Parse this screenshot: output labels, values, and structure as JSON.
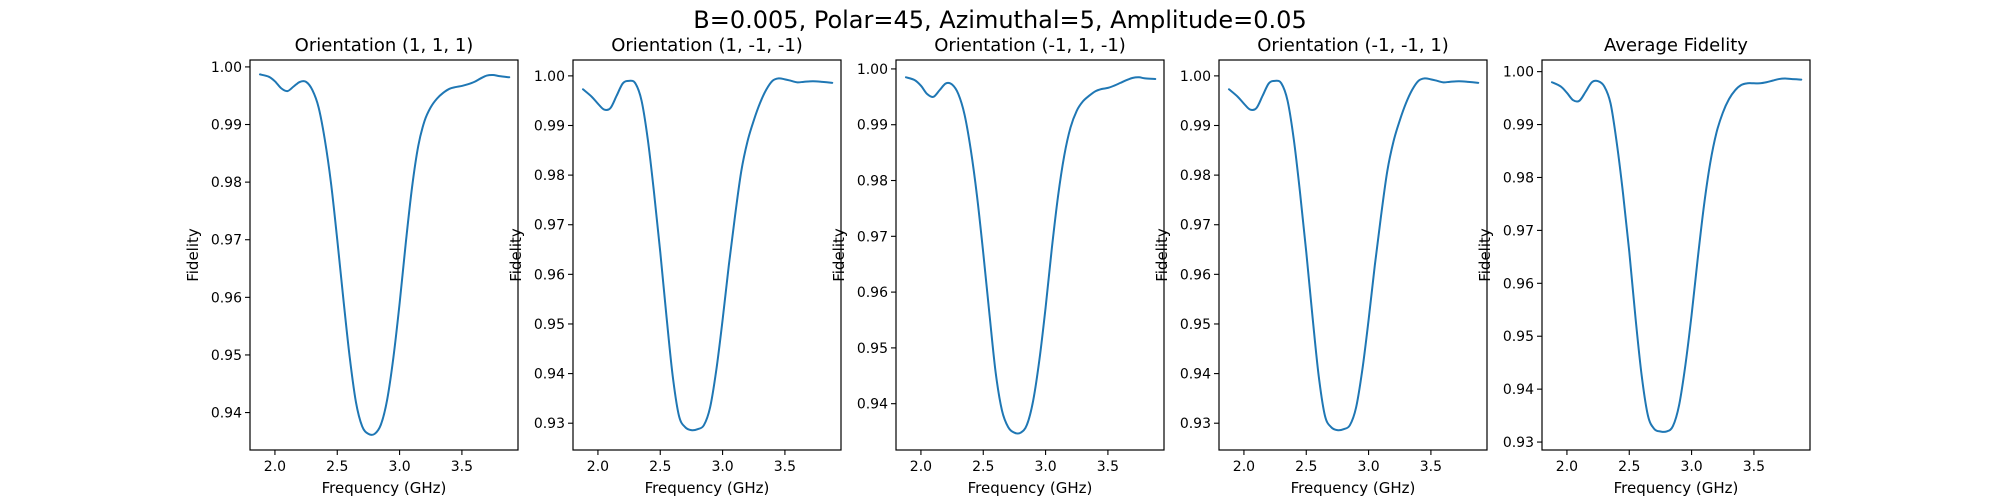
{
  "figure": {
    "suptitle": "B=0.005, Polar=45, Azimuthal=5, Amplitude=0.05"
  },
  "style": {
    "line_color": "#1f77b4"
  },
  "chart_data": [
    {
      "type": "line",
      "title": "Orientation (1, 1, 1)",
      "xlabel": "Frequency (GHz)",
      "ylabel": "Fidelity",
      "xlim": [
        1.8,
        3.95
      ],
      "ylim": [
        0.9335,
        1.0012
      ],
      "xticks": [
        2.0,
        2.5,
        3.0,
        3.5
      ],
      "yticks": [
        0.94,
        0.95,
        0.96,
        0.97,
        0.98,
        0.99,
        1.0
      ],
      "grid": false,
      "series": [
        {
          "x": [
            1.88,
            1.95,
            2.0,
            2.05,
            2.1,
            2.15,
            2.2,
            2.25,
            2.3,
            2.35,
            2.4,
            2.45,
            2.5,
            2.55,
            2.6,
            2.65,
            2.7,
            2.75,
            2.8,
            2.85,
            2.9,
            2.95,
            3.0,
            3.05,
            3.1,
            3.15,
            3.2,
            3.25,
            3.3,
            3.35,
            3.4,
            3.45,
            3.5,
            3.55,
            3.6,
            3.65,
            3.7,
            3.75,
            3.8,
            3.88
          ],
          "y": [
            0.9987,
            0.9983,
            0.9975,
            0.9963,
            0.9958,
            0.9966,
            0.9974,
            0.9974,
            0.996,
            0.993,
            0.9874,
            0.9798,
            0.97,
            0.9595,
            0.9496,
            0.9418,
            0.9376,
            0.9363,
            0.9363,
            0.9379,
            0.9422,
            0.9495,
            0.9589,
            0.9695,
            0.9791,
            0.9863,
            0.9906,
            0.993,
            0.9945,
            0.9955,
            0.9962,
            0.9965,
            0.9967,
            0.997,
            0.9974,
            0.998,
            0.9985,
            0.9986,
            0.9984,
            0.9982
          ]
        }
      ]
    },
    {
      "type": "line",
      "title": "Orientation (1, -1, -1)",
      "xlabel": "Frequency (GHz)",
      "ylabel": "Fidelity",
      "xlim": [
        1.8,
        3.95
      ],
      "ylim": [
        0.9246,
        1.0032
      ],
      "xticks": [
        2.0,
        2.5,
        3.0,
        3.5
      ],
      "yticks": [
        0.93,
        0.94,
        0.95,
        0.96,
        0.97,
        0.98,
        0.99,
        1.0
      ],
      "grid": false,
      "series": [
        {
          "x": [
            1.88,
            1.95,
            2.0,
            2.05,
            2.1,
            2.15,
            2.2,
            2.25,
            2.3,
            2.35,
            2.4,
            2.45,
            2.5,
            2.55,
            2.6,
            2.65,
            2.7,
            2.75,
            2.8,
            2.85,
            2.9,
            2.95,
            3.0,
            3.05,
            3.1,
            3.15,
            3.2,
            3.25,
            3.3,
            3.35,
            3.4,
            3.45,
            3.5,
            3.55,
            3.6,
            3.65,
            3.7,
            3.75,
            3.8,
            3.88
          ],
          "y": [
            0.9973,
            0.9958,
            0.9944,
            0.9932,
            0.9935,
            0.996,
            0.9985,
            0.999,
            0.9985,
            0.995,
            0.9872,
            0.9765,
            0.9645,
            0.9515,
            0.9395,
            0.9315,
            0.9292,
            0.9286,
            0.9288,
            0.9296,
            0.9332,
            0.9408,
            0.9508,
            0.9618,
            0.9718,
            0.9808,
            0.9868,
            0.991,
            0.9945,
            0.9972,
            0.999,
            0.9995,
            0.9993,
            0.999,
            0.9987,
            0.9988,
            0.9989,
            0.9989,
            0.9988,
            0.9986
          ]
        }
      ]
    },
    {
      "type": "line",
      "title": "Orientation (-1, 1, -1)",
      "xlabel": "Frequency (GHz)",
      "ylabel": "Fidelity",
      "xlim": [
        1.8,
        3.95
      ],
      "ylim": [
        0.9317,
        1.0016
      ],
      "xticks": [
        2.0,
        2.5,
        3.0,
        3.5
      ],
      "yticks": [
        0.94,
        0.95,
        0.96,
        0.97,
        0.98,
        0.99,
        1.0
      ],
      "grid": false,
      "series": [
        {
          "x": [
            1.88,
            1.95,
            2.0,
            2.05,
            2.1,
            2.15,
            2.2,
            2.25,
            2.3,
            2.35,
            2.4,
            2.45,
            2.5,
            2.55,
            2.6,
            2.65,
            2.7,
            2.75,
            2.8,
            2.85,
            2.9,
            2.95,
            3.0,
            3.05,
            3.1,
            3.15,
            3.2,
            3.25,
            3.3,
            3.35,
            3.4,
            3.45,
            3.5,
            3.55,
            3.6,
            3.65,
            3.7,
            3.75,
            3.8,
            3.88
          ],
          "y": [
            0.9985,
            0.998,
            0.997,
            0.9955,
            0.995,
            0.9962,
            0.9974,
            0.9972,
            0.9955,
            0.9918,
            0.9855,
            0.9772,
            0.967,
            0.956,
            0.9455,
            0.9388,
            0.9358,
            0.9348,
            0.9348,
            0.9362,
            0.9405,
            0.9478,
            0.9572,
            0.9678,
            0.9772,
            0.9845,
            0.9895,
            0.9925,
            0.9942,
            0.9952,
            0.996,
            0.9964,
            0.9966,
            0.997,
            0.9975,
            0.998,
            0.9984,
            0.9985,
            0.9983,
            0.9982
          ]
        }
      ]
    },
    {
      "type": "line",
      "title": "Orientation (-1, -1, 1)",
      "xlabel": "Frequency (GHz)",
      "ylabel": "Fidelity",
      "xlim": [
        1.8,
        3.95
      ],
      "ylim": [
        0.9246,
        1.0032
      ],
      "xticks": [
        2.0,
        2.5,
        3.0,
        3.5
      ],
      "yticks": [
        0.93,
        0.94,
        0.95,
        0.96,
        0.97,
        0.98,
        0.99,
        1.0
      ],
      "grid": false,
      "series": [
        {
          "x": [
            1.88,
            1.95,
            2.0,
            2.05,
            2.1,
            2.15,
            2.2,
            2.25,
            2.3,
            2.35,
            2.4,
            2.45,
            2.5,
            2.55,
            2.6,
            2.65,
            2.7,
            2.75,
            2.8,
            2.85,
            2.9,
            2.95,
            3.0,
            3.05,
            3.1,
            3.15,
            3.2,
            3.25,
            3.3,
            3.35,
            3.4,
            3.45,
            3.5,
            3.55,
            3.6,
            3.65,
            3.7,
            3.75,
            3.8,
            3.88
          ],
          "y": [
            0.9973,
            0.9958,
            0.9944,
            0.9932,
            0.9935,
            0.996,
            0.9985,
            0.999,
            0.9985,
            0.995,
            0.9872,
            0.9765,
            0.9645,
            0.9515,
            0.9395,
            0.9315,
            0.9292,
            0.9286,
            0.9288,
            0.9296,
            0.9332,
            0.9408,
            0.9508,
            0.9618,
            0.9718,
            0.9808,
            0.9868,
            0.991,
            0.9945,
            0.9972,
            0.999,
            0.9995,
            0.9993,
            0.999,
            0.9987,
            0.9988,
            0.9989,
            0.9989,
            0.9988,
            0.9986
          ]
        }
      ]
    },
    {
      "type": "line",
      "title": "Average Fidelity",
      "xlabel": "Frequency (GHz)",
      "ylabel": "Fidelity",
      "xlim": [
        1.8,
        3.95
      ],
      "ylim": [
        0.9285,
        1.0022
      ],
      "xticks": [
        2.0,
        2.5,
        3.0,
        3.5
      ],
      "yticks": [
        0.93,
        0.94,
        0.95,
        0.96,
        0.97,
        0.98,
        0.99,
        1.0
      ],
      "grid": false,
      "series": [
        {
          "x": [
            1.88,
            1.95,
            2.0,
            2.05,
            2.1,
            2.15,
            2.2,
            2.25,
            2.3,
            2.35,
            2.4,
            2.45,
            2.5,
            2.55,
            2.6,
            2.65,
            2.7,
            2.75,
            2.8,
            2.85,
            2.9,
            2.95,
            3.0,
            3.05,
            3.1,
            3.15,
            3.2,
            3.25,
            3.3,
            3.35,
            3.4,
            3.45,
            3.5,
            3.55,
            3.6,
            3.65,
            3.7,
            3.75,
            3.8,
            3.88
          ],
          "y": [
            0.998,
            0.9972,
            0.996,
            0.9946,
            0.9945,
            0.9962,
            0.998,
            0.9982,
            0.9972,
            0.994,
            0.9865,
            0.977,
            0.966,
            0.9535,
            0.9425,
            0.935,
            0.9325,
            0.932,
            0.932,
            0.933,
            0.937,
            0.9445,
            0.954,
            0.9648,
            0.9748,
            0.9828,
            0.9885,
            0.9922,
            0.9948,
            0.9965,
            0.9975,
            0.9978,
            0.9978,
            0.9978,
            0.998,
            0.9983,
            0.9986,
            0.9987,
            0.9986,
            0.9985
          ]
        }
      ]
    }
  ]
}
